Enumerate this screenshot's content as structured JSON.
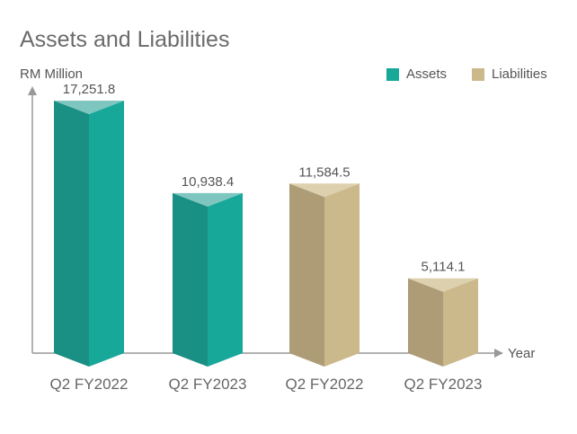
{
  "chart_data": {
    "type": "bar",
    "title": "Assets and Liabilities",
    "ylabel": "RM Million",
    "xlabel": "Year",
    "categories": [
      "Q2 FY2022",
      "Q2 FY2023",
      "Q2 FY2022",
      "Q2 FY2023"
    ],
    "values": [
      17251.8,
      10938.4,
      11584.5,
      5114.1
    ],
    "value_labels": [
      "17,251.8",
      "10,938.4",
      "11,584.5",
      "5,114.1"
    ],
    "bar_series": [
      "Assets",
      "Assets",
      "Liabilities",
      "Liabilities"
    ],
    "series": [
      {
        "name": "Assets",
        "color": "#17a89a",
        "values": [
          17251.8,
          10938.4,
          null,
          null
        ]
      },
      {
        "name": "Liabilities",
        "color": "#cbb88b",
        "values": [
          null,
          null,
          11584.5,
          5114.1
        ]
      }
    ],
    "ylim": [
      0,
      17251.8
    ],
    "grid": false,
    "legend_position": "top-right"
  },
  "colors": {
    "Assets": {
      "front": "#17a89a",
      "side": "#1a8f83",
      "top": "#7fc6c0"
    },
    "Liabilities": {
      "front": "#cbb88b",
      "side": "#ad9c76",
      "top": "#ddd0ae"
    }
  }
}
